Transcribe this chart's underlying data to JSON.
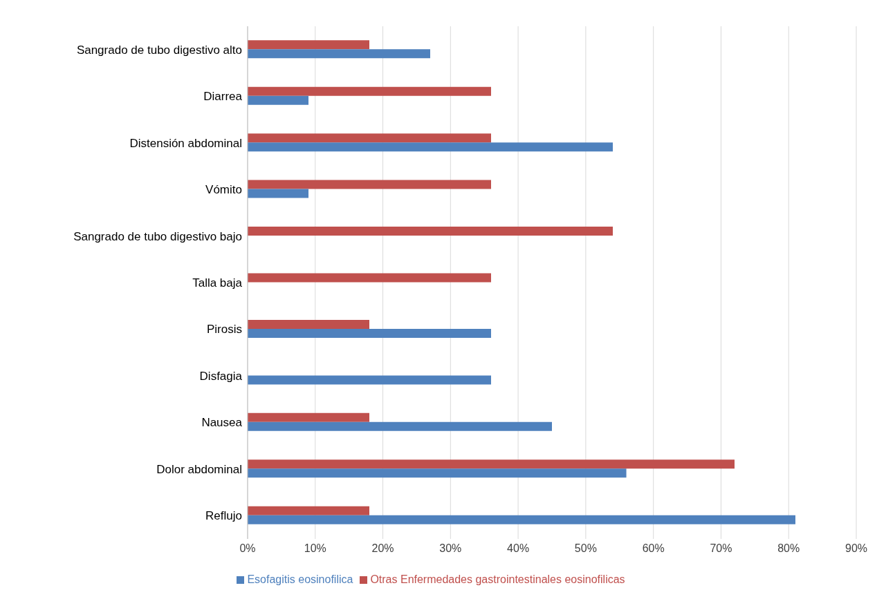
{
  "chart_data": {
    "type": "bar",
    "orientation": "horizontal",
    "categories": [
      "Sangrado de tubo digestivo alto",
      "Diarrea",
      "Distensión abdominal",
      "Vómito",
      "Sangrado de tubo digestivo bajo",
      "Talla baja",
      "Pirosis",
      "Disfagia",
      "Nausea",
      "Dolor abdominal",
      "Reflujo"
    ],
    "series": [
      {
        "name": "Otras Enfermedades gastrointestinales eosinofilicas",
        "color": "#c0504d",
        "values": [
          18,
          36,
          36,
          36,
          54,
          36,
          18,
          0,
          18,
          72,
          18
        ]
      },
      {
        "name": "Esofagitis eosinofilica",
        "color": "#4f81bd",
        "values": [
          27,
          9,
          54,
          9,
          0,
          0,
          36,
          36,
          45,
          56,
          81
        ]
      }
    ],
    "xlim": [
      0,
      90
    ],
    "xticks": [
      {
        "value": 0,
        "label": "0%"
      },
      {
        "value": 10,
        "label": "10%"
      },
      {
        "value": 20,
        "label": "20%"
      },
      {
        "value": 30,
        "label": "30%"
      },
      {
        "value": 40,
        "label": "40%"
      },
      {
        "value": 50,
        "label": "50%"
      },
      {
        "value": 60,
        "label": "60%"
      },
      {
        "value": 70,
        "label": "70%"
      },
      {
        "value": 80,
        "label": "80%"
      },
      {
        "value": 90,
        "label": "90%"
      }
    ],
    "grid": "x",
    "legend": "bottom"
  }
}
